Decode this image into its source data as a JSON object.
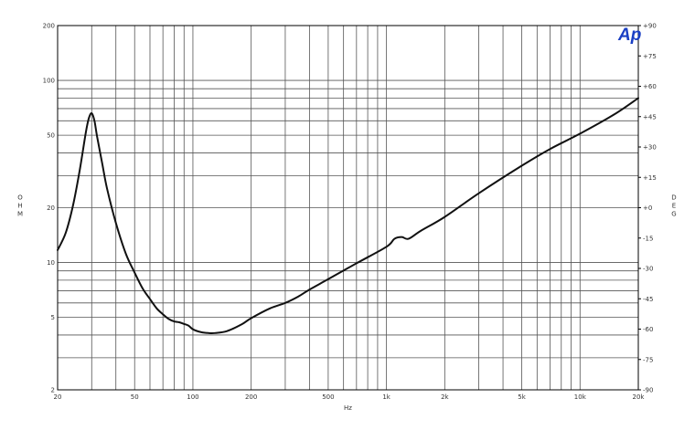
{
  "chart_data": {
    "type": "line",
    "title": "",
    "logo_text": "Ap",
    "xlabel": "Hz",
    "ylabel_left": "OHM",
    "ylabel_right": "DEG",
    "x_scale": "log",
    "y_scale": "log",
    "xlim": [
      20,
      20000
    ],
    "ylim": [
      2,
      200
    ],
    "ylim_right": [
      -90,
      90
    ],
    "grid": true,
    "x_ticks": [
      {
        "value": 20,
        "label": "20"
      },
      {
        "value": 50,
        "label": "50"
      },
      {
        "value": 100,
        "label": "100"
      },
      {
        "value": 200,
        "label": "200"
      },
      {
        "value": 500,
        "label": "500"
      },
      {
        "value": 1000,
        "label": "1k"
      },
      {
        "value": 2000,
        "label": "2k"
      },
      {
        "value": 5000,
        "label": "5k"
      },
      {
        "value": 10000,
        "label": "10k"
      },
      {
        "value": 20000,
        "label": "20k"
      }
    ],
    "y_ticks": [
      {
        "value": 2,
        "label": "2"
      },
      {
        "value": 5,
        "label": "5"
      },
      {
        "value": 10,
        "label": "10"
      },
      {
        "value": 20,
        "label": "20"
      },
      {
        "value": 50,
        "label": "50"
      },
      {
        "value": 100,
        "label": "100"
      },
      {
        "value": 200,
        "label": "200"
      }
    ],
    "y_right_ticks": [
      {
        "value": 90,
        "label": "+90"
      },
      {
        "value": 75,
        "label": "+75"
      },
      {
        "value": 60,
        "label": "+60"
      },
      {
        "value": 45,
        "label": "+45"
      },
      {
        "value": 30,
        "label": "+30"
      },
      {
        "value": 15,
        "label": "+15"
      },
      {
        "value": 0,
        "label": "+0"
      },
      {
        "value": -15,
        "label": "-15"
      },
      {
        "value": -30,
        "label": "-30"
      },
      {
        "value": -45,
        "label": "-45"
      },
      {
        "value": -60,
        "label": "-60"
      },
      {
        "value": -75,
        "label": "-75"
      },
      {
        "value": -90,
        "label": "-90"
      }
    ],
    "series": [
      {
        "color": "#111111",
        "x": [
          20,
          22,
          24,
          26,
          28,
          29,
          30,
          31,
          32,
          34,
          36,
          40,
          45,
          50,
          55,
          60,
          65,
          70,
          75,
          80,
          85,
          90,
          95,
          100,
          110,
          120,
          130,
          150,
          180,
          200,
          250,
          300,
          350,
          400,
          500,
          700,
          1000,
          1100,
          1200,
          1300,
          1500,
          2000,
          3000,
          5000,
          7000,
          10000,
          15000,
          20000
        ],
        "y": [
          11.7,
          14.5,
          20.5,
          32,
          52,
          62,
          66,
          60,
          49,
          35,
          25.5,
          16.5,
          11.2,
          8.8,
          7.2,
          6.3,
          5.6,
          5.2,
          4.9,
          4.75,
          4.7,
          4.6,
          4.5,
          4.3,
          4.15,
          4.1,
          4.1,
          4.2,
          4.6,
          4.95,
          5.6,
          6.0,
          6.5,
          7.1,
          8.1,
          9.9,
          12.2,
          13.5,
          13.8,
          13.5,
          14.9,
          17.8,
          24,
          34,
          42,
          51,
          65,
          80
        ]
      }
    ]
  }
}
